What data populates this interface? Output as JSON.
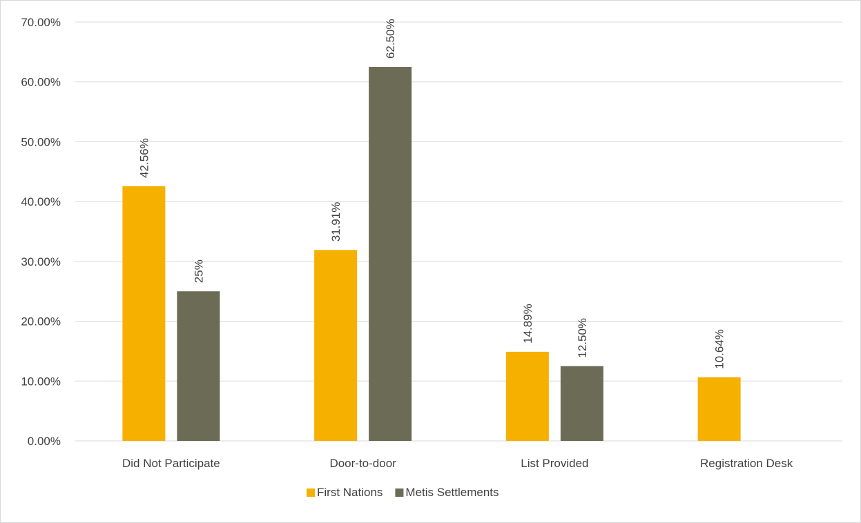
{
  "chart_data": {
    "type": "bar",
    "title": "",
    "xlabel": "",
    "ylabel": "",
    "categories": [
      "Did Not Participate",
      "Door-to-door",
      "List Provided",
      "Registration Desk"
    ],
    "series": [
      {
        "name": "First Nations",
        "color": "#f6b000",
        "values": [
          42.56,
          31.91,
          14.89,
          10.64
        ],
        "labels": [
          "42.56%",
          "31.91%",
          "14.89%",
          "10.64%"
        ]
      },
      {
        "name": "Metis Settlements",
        "color": "#6b6b56",
        "values": [
          25,
          62.5,
          12.5,
          null
        ],
        "labels": [
          "25%",
          "62.50%",
          "12.50%",
          null
        ]
      }
    ],
    "ylim": [
      0,
      70
    ],
    "yticks": [
      0,
      10,
      20,
      30,
      40,
      50,
      60,
      70
    ],
    "ytick_labels": [
      "0.00%",
      "10.00%",
      "20.00%",
      "30.00%",
      "40.00%",
      "50.00%",
      "60.00%",
      "70.00%"
    ],
    "grid": true,
    "gridline_color": "#d9d9d9",
    "legend_position": "bottom"
  }
}
